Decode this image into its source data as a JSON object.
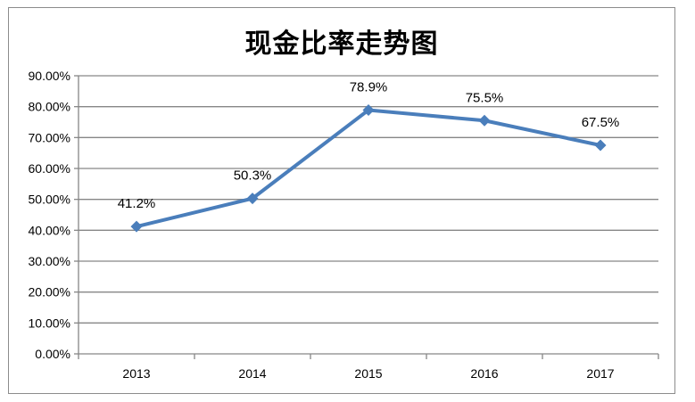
{
  "chart_data": {
    "type": "line",
    "title": "现金比率走势图",
    "xlabel": "",
    "ylabel": "",
    "categories": [
      "2013",
      "2014",
      "2015",
      "2016",
      "2017"
    ],
    "series": [
      {
        "values": [
          41.2,
          50.3,
          78.9,
          75.5,
          67.5
        ],
        "data_labels": [
          "41.2%",
          "50.3%",
          "78.9%",
          "75.5%",
          "67.5%"
        ],
        "color": "#4a7ebb",
        "marker": "diamond"
      }
    ],
    "ylim": [
      0,
      90
    ],
    "ytick_step": 10,
    "ytick_labels": [
      "0.00%",
      "10.00%",
      "20.00%",
      "30.00%",
      "40.00%",
      "50.00%",
      "60.00%",
      "70.00%",
      "80.00%",
      "90.00%"
    ],
    "grid": true,
    "legend": "none",
    "gridline_color": "#868686"
  }
}
